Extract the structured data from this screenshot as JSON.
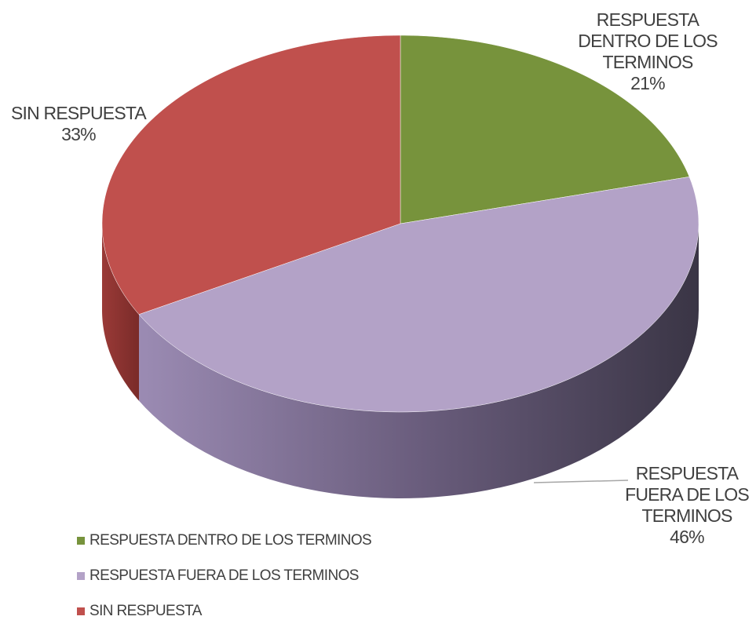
{
  "chart_data": {
    "type": "pie",
    "categories": [
      "RESPUESTA DENTRO DE LOS TERMINOS",
      "RESPUESTA FUERA DE LOS TERMINOS",
      "SIN RESPUESTA"
    ],
    "values": [
      21,
      46,
      33
    ],
    "value_labels": [
      "21%",
      "46%",
      "33%"
    ],
    "colors": [
      "#77933c",
      "#b3a2c7",
      "#c0504d"
    ],
    "legend": "bottom-left"
  }
}
